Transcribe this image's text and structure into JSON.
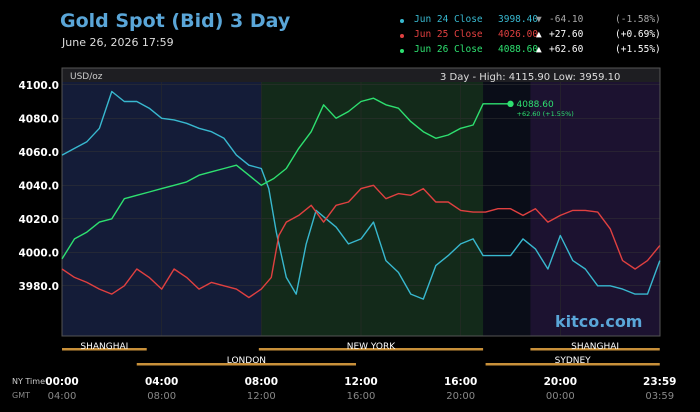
{
  "header": {
    "title": "Gold Spot (Bid) 3 Day",
    "date": "June 26, 2026 17:59",
    "unit": "USD/oz",
    "high_low": "3 Day - High: 4115.90  Low: 3959.10",
    "watermark": "kitco.com"
  },
  "legend": [
    {
      "label": "Jun 24 Close",
      "value": "3998.40",
      "arrow": "▼",
      "change": "-64.10",
      "pct": "(-1.58%)",
      "color": "#38b8cf"
    },
    {
      "label": "Jun 25 Close",
      "value": "4026.00",
      "arrow": "▲",
      "change": "+27.60",
      "pct": "(+0.69%)",
      "color": "#e04040"
    },
    {
      "label": "Jun 26 Close",
      "value": "4088.60",
      "arrow": "▲",
      "change": "+62.60",
      "pct": "(+1.55%)",
      "color": "#2ee070"
    }
  ],
  "sessions_top": [
    {
      "label": "SHANGHAI",
      "start": 0,
      "end": 3.4
    },
    {
      "label": "NEW YORK",
      "start": 7.9,
      "end": 16.9
    },
    {
      "label": "SHANGHAI",
      "start": 18.8,
      "end": 23.99
    }
  ],
  "sessions_bottom": [
    {
      "label": "LONDON",
      "start": 3.0,
      "end": 11.8
    },
    {
      "label": "SYDNEY",
      "start": 17.0,
      "end": 23.99
    }
  ],
  "time_rows": {
    "ny_label": "NY Time",
    "gmt_label": "GMT",
    "ny_ticks": [
      "00:00",
      "04:00",
      "08:00",
      "12:00",
      "16:00",
      "20:00",
      "23:59"
    ],
    "gmt_ticks": [
      "04:00",
      "08:00",
      "12:00",
      "16:00",
      "20:00",
      "00:00",
      "03:59"
    ]
  },
  "end_label": {
    "value": "4088.60",
    "change": "+62.60 (+1.55%)"
  },
  "chart_data": {
    "type": "line",
    "xlim": [
      0,
      24
    ],
    "ylim": [
      3950,
      4110
    ],
    "yticks": [
      3980,
      4000,
      4020,
      4040,
      4060,
      4080,
      4100
    ],
    "ytick_labels": [
      "3980.0",
      "4000.0",
      "4020.0",
      "4040.0",
      "4060.0",
      "4080.0",
      "4100.0"
    ],
    "series": [
      {
        "name": "Jun 24 Close",
        "color": "#38b8cf",
        "points": [
          [
            0,
            4058
          ],
          [
            0.5,
            4062
          ],
          [
            1,
            4066
          ],
          [
            1.5,
            4074
          ],
          [
            2,
            4096
          ],
          [
            2.5,
            4090
          ],
          [
            3,
            4090
          ],
          [
            3.5,
            4086
          ],
          [
            4,
            4080
          ],
          [
            4.5,
            4079
          ],
          [
            5,
            4077
          ],
          [
            5.5,
            4074
          ],
          [
            6,
            4072
          ],
          [
            6.5,
            4068
          ],
          [
            7,
            4058
          ],
          [
            7.5,
            4052
          ],
          [
            8,
            4050
          ],
          [
            8.3,
            4038
          ],
          [
            8.6,
            4012
          ],
          [
            9,
            3985
          ],
          [
            9.4,
            3975
          ],
          [
            9.8,
            4005
          ],
          [
            10.2,
            4025
          ],
          [
            10.6,
            4020
          ],
          [
            11,
            4015
          ],
          [
            11.5,
            4005
          ],
          [
            12,
            4008
          ],
          [
            12.5,
            4018
          ],
          [
            13,
            3995
          ],
          [
            13.5,
            3988
          ],
          [
            14,
            3975
          ],
          [
            14.5,
            3972
          ],
          [
            15,
            3992
          ],
          [
            15.5,
            3998
          ],
          [
            16,
            4005
          ],
          [
            16.5,
            4008
          ],
          [
            16.9,
            3998
          ],
          [
            17.4,
            3998
          ],
          [
            18,
            3998
          ],
          [
            18.5,
            4008
          ],
          [
            19,
            4002
          ],
          [
            19.5,
            3990
          ],
          [
            20,
            4010
          ],
          [
            20.5,
            3995
          ],
          [
            21,
            3990
          ],
          [
            21.5,
            3980
          ],
          [
            22,
            3980
          ],
          [
            22.5,
            3978
          ],
          [
            23,
            3975
          ],
          [
            23.5,
            3975
          ],
          [
            23.99,
            3995
          ]
        ]
      },
      {
        "name": "Jun 25 Close",
        "color": "#e04040",
        "points": [
          [
            0,
            3990
          ],
          [
            0.5,
            3985
          ],
          [
            1,
            3982
          ],
          [
            1.5,
            3978
          ],
          [
            2,
            3975
          ],
          [
            2.5,
            3980
          ],
          [
            3,
            3990
          ],
          [
            3.5,
            3985
          ],
          [
            4,
            3978
          ],
          [
            4.5,
            3990
          ],
          [
            5,
            3985
          ],
          [
            5.5,
            3978
          ],
          [
            6,
            3982
          ],
          [
            6.5,
            3980
          ],
          [
            7,
            3978
          ],
          [
            7.5,
            3973
          ],
          [
            8,
            3978
          ],
          [
            8.4,
            3985
          ],
          [
            8.7,
            4010
          ],
          [
            9,
            4018
          ],
          [
            9.5,
            4022
          ],
          [
            10,
            4028
          ],
          [
            10.5,
            4018
          ],
          [
            11,
            4028
          ],
          [
            11.5,
            4030
          ],
          [
            12,
            4038
          ],
          [
            12.5,
            4040
          ],
          [
            13,
            4032
          ],
          [
            13.5,
            4035
          ],
          [
            14,
            4034
          ],
          [
            14.5,
            4038
          ],
          [
            15,
            4030
          ],
          [
            15.5,
            4030
          ],
          [
            16,
            4025
          ],
          [
            16.5,
            4024
          ],
          [
            17,
            4024
          ],
          [
            17.5,
            4026
          ],
          [
            18,
            4026
          ],
          [
            18.5,
            4022
          ],
          [
            19,
            4026
          ],
          [
            19.5,
            4018
          ],
          [
            20,
            4022
          ],
          [
            20.5,
            4025
          ],
          [
            21,
            4025
          ],
          [
            21.5,
            4024
          ],
          [
            22,
            4014
          ],
          [
            22.5,
            3995
          ],
          [
            23,
            3990
          ],
          [
            23.5,
            3995
          ],
          [
            23.99,
            4004
          ]
        ]
      },
      {
        "name": "Jun 26 Close",
        "color": "#2ee070",
        "points": [
          [
            0,
            3996
          ],
          [
            0.5,
            4008
          ],
          [
            1,
            4012
          ],
          [
            1.5,
            4018
          ],
          [
            2,
            4020
          ],
          [
            2.5,
            4032
          ],
          [
            3,
            4034
          ],
          [
            3.5,
            4036
          ],
          [
            4,
            4038
          ],
          [
            4.5,
            4040
          ],
          [
            5,
            4042
          ],
          [
            5.5,
            4046
          ],
          [
            6,
            4048
          ],
          [
            6.5,
            4050
          ],
          [
            7,
            4052
          ],
          [
            7.5,
            4046
          ],
          [
            8,
            4040
          ],
          [
            8.5,
            4044
          ],
          [
            9,
            4050
          ],
          [
            9.5,
            4062
          ],
          [
            10,
            4072
          ],
          [
            10.5,
            4088
          ],
          [
            11,
            4080
          ],
          [
            11.5,
            4084
          ],
          [
            12,
            4090
          ],
          [
            12.5,
            4092
          ],
          [
            13,
            4088
          ],
          [
            13.5,
            4086
          ],
          [
            14,
            4078
          ],
          [
            14.5,
            4072
          ],
          [
            15,
            4068
          ],
          [
            15.5,
            4070
          ],
          [
            16,
            4074
          ],
          [
            16.5,
            4076
          ],
          [
            16.9,
            4088.6
          ],
          [
            17.5,
            4088.6
          ],
          [
            18,
            4088.6
          ]
        ]
      }
    ]
  }
}
